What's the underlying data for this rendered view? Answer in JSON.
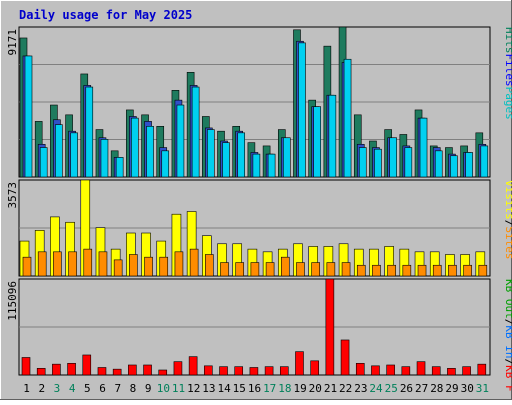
{
  "chart_data": {
    "type": "bar",
    "title": "Daily usage for May 2025",
    "categories": [
      "1",
      "2",
      "3",
      "4",
      "5",
      "6",
      "7",
      "8",
      "9",
      "10",
      "11",
      "12",
      "13",
      "14",
      "15",
      "16",
      "17",
      "18",
      "19",
      "20",
      "21",
      "22",
      "23",
      "24",
      "25",
      "26",
      "27",
      "28",
      "29",
      "30",
      "31"
    ],
    "weekend_days": [
      "3",
      "4",
      "10",
      "11",
      "17",
      "18",
      "24",
      "25",
      "31"
    ],
    "panels": [
      {
        "id": "hits-files-pages",
        "max_label": "9171",
        "ylim": [
          0,
          9171
        ],
        "right_label": [
          "Pages",
          "Files",
          "Hits"
        ],
        "series": [
          {
            "name": "Hits",
            "color": "#1e7b5e",
            "values": [
              8500,
              3400,
              4400,
              3800,
              6300,
              2900,
              1600,
              4100,
              3800,
              3100,
              5300,
              6400,
              3700,
              2800,
              3100,
              2100,
              1900,
              2900,
              9000,
              4700,
              8000,
              9171,
              3800,
              2200,
              2900,
              2600,
              4100,
              1900,
              1800,
              1900,
              2700
            ]
          },
          {
            "name": "Files",
            "color": "#3050c8",
            "values": [
              7400,
              2000,
              3500,
              2800,
              5600,
              2400,
              1200,
              3700,
              3400,
              1800,
              4700,
              5600,
              3000,
              2200,
              2800,
              1500,
              1400,
              2400,
              8300,
              4300,
              5000,
              7000,
              2000,
              1800,
              2400,
              1900,
              3600,
              1800,
              1400,
              1500,
              2000
            ]
          },
          {
            "name": "Pages",
            "color": "#00d0f0",
            "values": [
              7400,
              1800,
              3200,
              2700,
              5500,
              2300,
              1200,
              3600,
              3100,
              1600,
              4400,
              5500,
              2900,
              2100,
              2700,
              1400,
              1400,
              2400,
              8200,
              4300,
              5000,
              7200,
              1800,
              1700,
              2400,
              1800,
              3600,
              1600,
              1300,
              1500,
              1900
            ]
          }
        ]
      },
      {
        "id": "visits-sites",
        "max_label": "3573",
        "ylim": [
          0,
          3573
        ],
        "right_label": [
          "Sites",
          "/",
          "Visits"
        ],
        "series": [
          {
            "name": "Visits",
            "color": "#ffff00",
            "values": [
              1300,
              1700,
              2200,
              2000,
              3573,
              1800,
              1000,
              1600,
              1600,
              1300,
              2300,
              2400,
              1500,
              1200,
              1200,
              1000,
              900,
              1000,
              1200,
              1100,
              1100,
              1200,
              1000,
              1000,
              1100,
              1000,
              900,
              900,
              800,
              800,
              900
            ]
          },
          {
            "name": "Sites",
            "color": "#ff8c00",
            "values": [
              700,
              900,
              900,
              900,
              1000,
              900,
              600,
              800,
              700,
              700,
              900,
              1000,
              800,
              500,
              500,
              500,
              500,
              700,
              500,
              500,
              500,
              500,
              400,
              400,
              400,
              400,
              400,
              400,
              400,
              400,
              400
            ]
          }
        ]
      },
      {
        "id": "kbytes",
        "max_label": "115096",
        "ylim": [
          0,
          115096
        ],
        "right_label": [
          "KB F",
          "/",
          "KB In",
          "/",
          "KB Out"
        ],
        "series": [
          {
            "name": "KB F",
            "color": "#ff0000",
            "values": [
              21000,
              8000,
              13000,
              14000,
              24000,
              9000,
              7000,
              12000,
              12000,
              6000,
              16000,
              22000,
              11000,
              10000,
              10000,
              9000,
              10000,
              10000,
              28000,
              17000,
              115096,
              42000,
              14000,
              11000,
              12000,
              10000,
              16000,
              10000,
              8000,
              10000,
              13000
            ]
          }
        ]
      }
    ],
    "colors": {
      "background": "#c0c0c0",
      "title": "#0000cc",
      "text": "#000000",
      "weekend_text": "#00805a",
      "gridline": "#808080",
      "bar_outline": "#000000",
      "label_hits": "#00805a",
      "label_files": "#0000ff",
      "label_pages": "#00c0c0",
      "label_visits": "#ffff00",
      "label_sites": "#ff8c00",
      "label_kbf": "#ff0000",
      "label_kbin": "#0070ff",
      "label_kbout": "#00a000",
      "separator": "#000000"
    }
  }
}
